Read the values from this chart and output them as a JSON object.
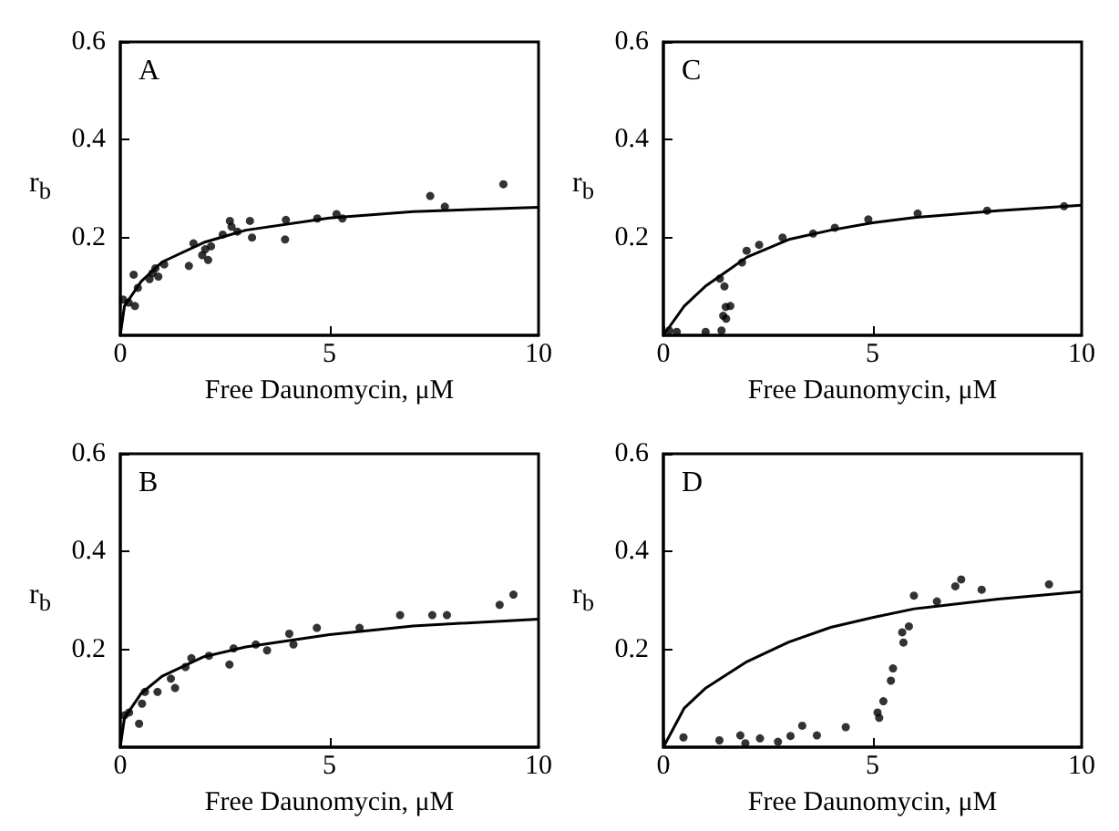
{
  "chart_data": [
    {
      "type": "scatter",
      "annotations": [
        "A"
      ],
      "xlabel": "Free Daunomycin, μM",
      "ylabel": "r$_{b}$",
      "xlim": [
        0,
        10
      ],
      "ylim": [
        0,
        0.6
      ],
      "xticks": [
        0,
        5,
        10
      ],
      "yticks": [
        0.2,
        0.4,
        0.6
      ],
      "series": [
        {
          "type": "scatter",
          "marker": "circle",
          "color": "#000000",
          "x": [
            0.07,
            0.2,
            0.35,
            0.32,
            0.42,
            0.7,
            0.77,
            0.84,
            0.91,
            1.05,
            1.64,
            1.75,
            1.96,
            2.03,
            2.17,
            2.1,
            2.45,
            2.62,
            2.66,
            2.8,
            3.1,
            3.15,
            3.96,
            3.94,
            4.71,
            5.17,
            5.31,
            7.41,
            7.76,
            9.16
          ],
          "values": [
            0.073,
            0.067,
            0.06,
            0.124,
            0.097,
            0.115,
            0.127,
            0.137,
            0.12,
            0.145,
            0.142,
            0.188,
            0.164,
            0.176,
            0.182,
            0.154,
            0.206,
            0.234,
            0.222,
            0.212,
            0.234,
            0.2,
            0.236,
            0.196,
            0.239,
            0.248,
            0.239,
            0.285,
            0.263,
            0.309
          ]
        },
        {
          "type": "line",
          "marker": "none",
          "color": "#000000",
          "x": [
            0,
            0.1,
            0.5,
            1,
            2,
            3,
            5,
            7,
            10
          ],
          "values": [
            0,
            0.06,
            0.11,
            0.15,
            0.19,
            0.215,
            0.24,
            0.253,
            0.262
          ]
        }
      ]
    },
    {
      "type": "scatter",
      "annotations": [
        "C"
      ],
      "xlabel": "Free Daunomycin, μM",
      "ylabel": "r$_{b}$",
      "xlim": [
        0,
        10
      ],
      "ylim": [
        0,
        0.6
      ],
      "xticks": [
        0,
        5,
        10
      ],
      "yticks": [
        0.2,
        0.4,
        0.6
      ],
      "series": [
        {
          "type": "scatter",
          "marker": "circle",
          "color": "#000000",
          "x": [
            0.14,
            0.32,
            1.01,
            1.35,
            1.46,
            1.39,
            1.43,
            1.49,
            1.6,
            1.5,
            1.88,
            1.99,
            2.29,
            2.85,
            3.58,
            4.1,
            4.9,
            6.08,
            7.74,
            9.58
          ],
          "values": [
            0.01,
            0.007,
            0.007,
            0.116,
            0.1,
            0.01,
            0.04,
            0.058,
            0.06,
            0.034,
            0.149,
            0.173,
            0.185,
            0.2,
            0.208,
            0.22,
            0.237,
            0.249,
            0.255,
            0.264
          ]
        },
        {
          "type": "line",
          "marker": "none",
          "color": "#000000",
          "x": [
            0,
            0.5,
            1,
            1.5,
            2,
            3,
            4,
            5,
            6,
            8,
            10
          ],
          "values": [
            0,
            0.06,
            0.1,
            0.13,
            0.16,
            0.196,
            0.215,
            0.23,
            0.241,
            0.255,
            0.266
          ]
        }
      ]
    },
    {
      "type": "scatter",
      "annotations": [
        "B"
      ],
      "xlabel": "Free Daunomycin, μM",
      "ylabel": "r$_{b}$",
      "xlim": [
        0,
        10
      ],
      "ylim": [
        0,
        0.6
      ],
      "xticks": [
        0,
        5,
        10
      ],
      "yticks": [
        0.2,
        0.4,
        0.6
      ],
      "series": [
        {
          "type": "scatter",
          "marker": "circle",
          "color": "#000000",
          "x": [
            0.1,
            0.21,
            0.45,
            0.52,
            0.59,
            0.89,
            1.21,
            1.31,
            1.56,
            1.7,
            2.12,
            2.61,
            2.71,
            3.24,
            3.51,
            4.04,
            4.14,
            4.7,
            5.72,
            6.69,
            7.46,
            7.81,
            9.07,
            9.4
          ],
          "values": [
            0.065,
            0.071,
            0.048,
            0.089,
            0.113,
            0.113,
            0.14,
            0.121,
            0.164,
            0.182,
            0.187,
            0.169,
            0.202,
            0.21,
            0.198,
            0.232,
            0.21,
            0.244,
            0.244,
            0.27,
            0.27,
            0.27,
            0.291,
            0.312
          ]
        },
        {
          "type": "line",
          "marker": "none",
          "color": "#000000",
          "x": [
            0,
            0.1,
            0.5,
            1,
            2,
            3,
            5,
            7,
            10
          ],
          "values": [
            0,
            0.06,
            0.11,
            0.145,
            0.185,
            0.205,
            0.23,
            0.248,
            0.262
          ]
        }
      ]
    },
    {
      "type": "scatter",
      "annotations": [
        "D"
      ],
      "xlabel": "Free Daunomycin, μM",
      "ylabel": "r$_{b}$",
      "xlim": [
        0,
        10
      ],
      "ylim": [
        0,
        0.6
      ],
      "xticks": [
        0,
        5,
        10
      ],
      "yticks": [
        0.2,
        0.4,
        0.6
      ],
      "series": [
        {
          "type": "scatter",
          "marker": "circle",
          "color": "#000000",
          "x": [
            0.48,
            1.34,
            1.84,
            1.96,
            2.31,
            2.74,
            3.04,
            3.32,
            3.67,
            4.36,
            5.12,
            5.16,
            5.26,
            5.44,
            5.49,
            5.71,
            5.74,
            5.87,
            5.99,
            6.54,
            6.98,
            7.12,
            7.61,
            9.22
          ],
          "values": [
            0.02,
            0.014,
            0.024,
            0.008,
            0.018,
            0.011,
            0.023,
            0.044,
            0.024,
            0.041,
            0.071,
            0.06,
            0.094,
            0.136,
            0.161,
            0.235,
            0.214,
            0.247,
            0.31,
            0.298,
            0.329,
            0.343,
            0.322,
            0.333
          ]
        },
        {
          "type": "line",
          "marker": "none",
          "color": "#000000",
          "x": [
            0,
            0.5,
            1,
            2,
            3,
            4,
            5,
            6,
            8,
            10
          ],
          "values": [
            0,
            0.08,
            0.12,
            0.175,
            0.215,
            0.245,
            0.265,
            0.283,
            0.303,
            0.318
          ]
        }
      ]
    }
  ]
}
